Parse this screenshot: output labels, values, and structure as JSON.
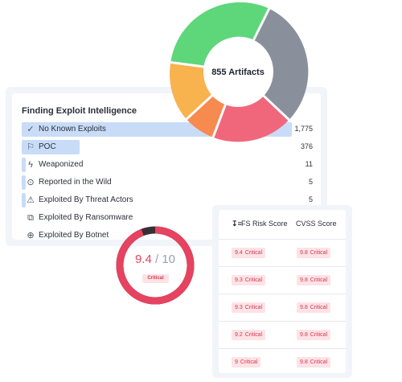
{
  "exploit_panel": {
    "title": "Finding Exploit Intelligence",
    "rows": [
      {
        "icon": "check-icon",
        "label": "No Known Exploits",
        "value": "1,775"
      },
      {
        "icon": "flag-icon",
        "label": "POC",
        "value": "376"
      },
      {
        "icon": "lightning-icon",
        "label": "Weaponized",
        "value": "11"
      },
      {
        "icon": "location-pin-icon",
        "label": "Reported in the Wild",
        "value": "5"
      },
      {
        "icon": "warning-icon",
        "label": "Exploited By Threat Actors",
        "value": "5"
      },
      {
        "icon": "ransomware-icon",
        "label": "Exploited By Ransomware",
        "value": ""
      },
      {
        "icon": "globe-icon",
        "label": "Exploited By Botnet",
        "value": ""
      }
    ]
  },
  "artifacts": {
    "label": "855 Artifacts",
    "segment_colors": [
      "#8a909b",
      "#f0677c",
      "#f78a4e",
      "#f8b24e",
      "#5ed67a"
    ]
  },
  "score_gauge": {
    "score": "9.4",
    "max": "/ 10",
    "badge": "Critical",
    "fraction": 0.94,
    "color": "#e5435f",
    "track_color": "#3a2e35"
  },
  "risk_table": {
    "col1": "FS Risk Score",
    "col2": "CVSS Score",
    "rows": [
      {
        "fs_score": "9.4",
        "fs_label": "Critical",
        "cvss_score": "9.8",
        "cvss_label": "Critical"
      },
      {
        "fs_score": "9.3",
        "fs_label": "Critical",
        "cvss_score": "9.8",
        "cvss_label": "Critical"
      },
      {
        "fs_score": "9.3",
        "fs_label": "Critical",
        "cvss_score": "9.8",
        "cvss_label": "Critical"
      },
      {
        "fs_score": "9.2",
        "fs_label": "Critical",
        "cvss_score": "9.8",
        "cvss_label": "Critical"
      },
      {
        "fs_score": "9",
        "fs_label": "Critical",
        "cvss_score": "9.8",
        "cvss_label": "Critical"
      }
    ]
  }
}
